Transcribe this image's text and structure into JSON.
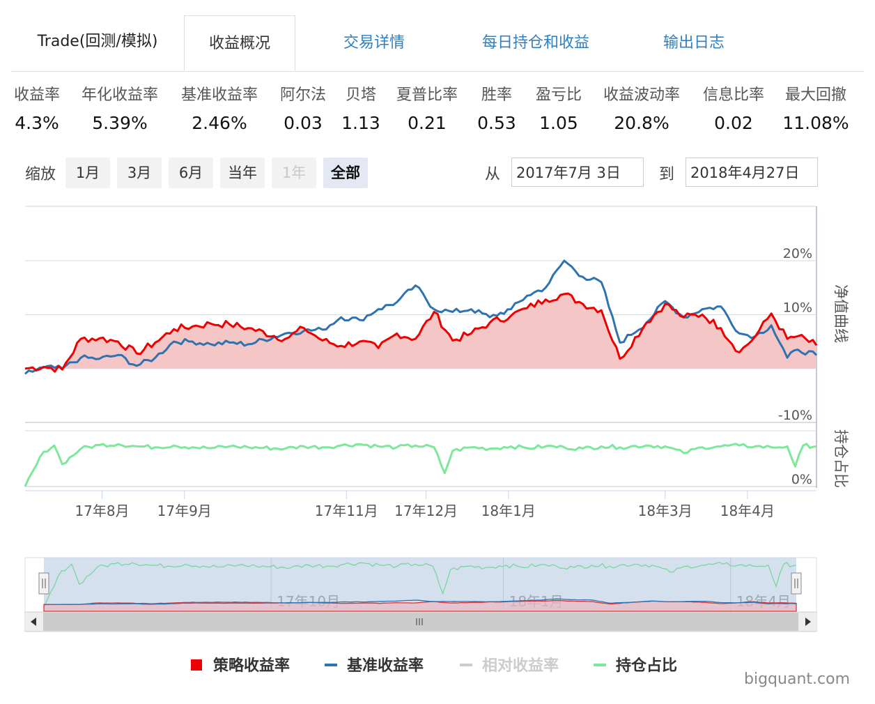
{
  "tabs": [
    "Trade(回测/模拟)",
    "收益概况",
    "交易详情",
    "每日持仓和收益",
    "输出日志"
  ],
  "metrics": [
    {
      "label": "收益率",
      "value": "4.3%"
    },
    {
      "label": "年化收益率",
      "value": "5.39%"
    },
    {
      "label": "基准收益率",
      "value": "2.46%"
    },
    {
      "label": "阿尔法",
      "value": "0.03"
    },
    {
      "label": "贝塔",
      "value": "1.13"
    },
    {
      "label": "夏普比率",
      "value": "0.21"
    },
    {
      "label": "胜率",
      "value": "0.53"
    },
    {
      "label": "盈亏比",
      "value": "1.05"
    },
    {
      "label": "收益波动率",
      "value": "20.8%"
    },
    {
      "label": "信息比率",
      "value": "0.02"
    },
    {
      "label": "最大回撤",
      "value": "11.08%"
    }
  ],
  "zoom": {
    "label": "缩放",
    "buttons": [
      "1月",
      "3月",
      "6月",
      "当年",
      "1年",
      "全部"
    ],
    "disabled": "1年",
    "selected": "全部"
  },
  "range": {
    "from_label": "从",
    "from": "2017年7月 3日",
    "to_label": "到",
    "to": "2018年4月27日"
  },
  "watermark": "bigquant.com",
  "colors": {
    "strategy": "#ee0000",
    "benchmark": "#2f72b0",
    "relative": "#cccccc",
    "position": "#7de89a",
    "area": "#f5c6c6",
    "tab_link": "#2f7fc1"
  },
  "chart_data": {
    "type": "line",
    "x_start": "2017-07-03",
    "x_end": "2018-04-27",
    "x_ticks": [
      "17年8月",
      "17年9月",
      "17年11月",
      "17年12月",
      "18年1月",
      "18年3月",
      "18年4月"
    ],
    "navigator_ticks": [
      "17年10月",
      "18年1月",
      "18年4月"
    ],
    "y_axis_title": "净值曲线",
    "y_ticks": [
      "20%",
      "10%",
      "0%",
      "-10%"
    ],
    "ylim": [
      -10,
      20
    ],
    "position_axis_title": "持仓占比",
    "position_ticks": [
      "0%"
    ],
    "series": [
      {
        "name": "策略收益率",
        "color": "#ee0000",
        "points": [
          [
            "2017-07-03",
            0
          ],
          [
            "2017-07-10",
            0.3
          ],
          [
            "2017-07-17",
            -0.2
          ],
          [
            "2017-07-24",
            5.5
          ],
          [
            "2017-07-31",
            5.6
          ],
          [
            "2017-08-07",
            5.0
          ],
          [
            "2017-08-14",
            2.8
          ],
          [
            "2017-08-21",
            4.8
          ],
          [
            "2017-08-28",
            7.3
          ],
          [
            "2017-09-04",
            7.8
          ],
          [
            "2017-09-11",
            8.3
          ],
          [
            "2017-09-18",
            8.2
          ],
          [
            "2017-09-25",
            7.5
          ],
          [
            "2017-10-09",
            5.5
          ],
          [
            "2017-10-16",
            7.5
          ],
          [
            "2017-10-23",
            5.2
          ],
          [
            "2017-10-30",
            4.2
          ],
          [
            "2017-11-06",
            5.0
          ],
          [
            "2017-11-13",
            3.8
          ],
          [
            "2017-11-20",
            6.5
          ],
          [
            "2017-11-27",
            5.5
          ],
          [
            "2017-12-04",
            10.5
          ],
          [
            "2017-12-11",
            5.2
          ],
          [
            "2017-12-18",
            6.5
          ],
          [
            "2017-12-25",
            8.5
          ],
          [
            "2018-01-02",
            9.8
          ],
          [
            "2018-01-08",
            11.2
          ],
          [
            "2018-01-15",
            12.8
          ],
          [
            "2018-01-22",
            13.8
          ],
          [
            "2018-01-29",
            12.0
          ],
          [
            "2018-02-05",
            10.8
          ],
          [
            "2018-02-12",
            1.8
          ],
          [
            "2018-02-22",
            8.5
          ],
          [
            "2018-03-01",
            12.0
          ],
          [
            "2018-03-08",
            9.5
          ],
          [
            "2018-03-15",
            10.0
          ],
          [
            "2018-03-22",
            7.5
          ],
          [
            "2018-03-29",
            3.0
          ],
          [
            "2018-04-04",
            6.0
          ],
          [
            "2018-04-10",
            10.2
          ],
          [
            "2018-04-16",
            5.5
          ],
          [
            "2018-04-20",
            6.0
          ],
          [
            "2018-04-27",
            4.3
          ]
        ]
      },
      {
        "name": "基准收益率",
        "color": "#2f72b0",
        "points": [
          [
            "2017-07-03",
            -1.0
          ],
          [
            "2017-07-10",
            0.2
          ],
          [
            "2017-07-17",
            0.0
          ],
          [
            "2017-07-24",
            2.0
          ],
          [
            "2017-07-31",
            1.8
          ],
          [
            "2017-08-07",
            2.5
          ],
          [
            "2017-08-14",
            0.5
          ],
          [
            "2017-08-21",
            2.0
          ],
          [
            "2017-08-28",
            5.0
          ],
          [
            "2017-09-04",
            5.0
          ],
          [
            "2017-09-11",
            4.5
          ],
          [
            "2017-09-18",
            4.8
          ],
          [
            "2017-09-25",
            4.5
          ],
          [
            "2017-10-09",
            6.5
          ],
          [
            "2017-10-16",
            7.0
          ],
          [
            "2017-10-23",
            7.2
          ],
          [
            "2017-10-30",
            9.5
          ],
          [
            "2017-11-06",
            9.0
          ],
          [
            "2017-11-13",
            11.0
          ],
          [
            "2017-11-20",
            12.3
          ],
          [
            "2017-11-27",
            15.4
          ],
          [
            "2017-12-04",
            11.0
          ],
          [
            "2017-12-11",
            10.5
          ],
          [
            "2017-12-18",
            11.0
          ],
          [
            "2017-12-25",
            9.5
          ],
          [
            "2018-01-02",
            11.0
          ],
          [
            "2018-01-08",
            13.5
          ],
          [
            "2018-01-15",
            15.0
          ],
          [
            "2018-01-22",
            20.0
          ],
          [
            "2018-01-29",
            17.0
          ],
          [
            "2018-02-05",
            16.0
          ],
          [
            "2018-02-12",
            4.8
          ],
          [
            "2018-02-22",
            8.5
          ],
          [
            "2018-03-01",
            12.5
          ],
          [
            "2018-03-08",
            9.5
          ],
          [
            "2018-03-15",
            11.0
          ],
          [
            "2018-03-22",
            11.5
          ],
          [
            "2018-03-29",
            6.5
          ],
          [
            "2018-04-04",
            6.0
          ],
          [
            "2018-04-10",
            8.0
          ],
          [
            "2018-04-16",
            2.0
          ],
          [
            "2018-04-20",
            3.5
          ],
          [
            "2018-04-27",
            2.46
          ]
        ]
      },
      {
        "name": "相对收益率",
        "color": "#cccccc",
        "visible": false,
        "points": []
      },
      {
        "name": "持仓占比",
        "color": "#7de89a",
        "points": [
          [
            "2017-07-03",
            0
          ],
          [
            "2017-07-10",
            78
          ],
          [
            "2017-07-14",
            92
          ],
          [
            "2017-07-17",
            50
          ],
          [
            "2017-07-24",
            85
          ],
          [
            "2017-07-31",
            93
          ],
          [
            "2017-08-07",
            95
          ],
          [
            "2017-08-14",
            90
          ],
          [
            "2017-08-21",
            88
          ],
          [
            "2017-08-28",
            92
          ],
          [
            "2017-09-04",
            88
          ],
          [
            "2017-09-11",
            86
          ],
          [
            "2017-09-18",
            90
          ],
          [
            "2017-09-25",
            88
          ],
          [
            "2017-10-09",
            85
          ],
          [
            "2017-10-16",
            90
          ],
          [
            "2017-10-23",
            88
          ],
          [
            "2017-10-30",
            92
          ],
          [
            "2017-11-06",
            95
          ],
          [
            "2017-11-13",
            90
          ],
          [
            "2017-11-20",
            88
          ],
          [
            "2017-11-27",
            92
          ],
          [
            "2017-12-04",
            88
          ],
          [
            "2017-12-08",
            30
          ],
          [
            "2017-12-11",
            80
          ],
          [
            "2017-12-18",
            88
          ],
          [
            "2017-12-25",
            85
          ],
          [
            "2018-01-02",
            90
          ],
          [
            "2018-01-08",
            86
          ],
          [
            "2018-01-15",
            90
          ],
          [
            "2018-01-22",
            88
          ],
          [
            "2018-01-29",
            85
          ],
          [
            "2018-02-05",
            90
          ],
          [
            "2018-02-12",
            88
          ],
          [
            "2018-02-22",
            92
          ],
          [
            "2018-03-01",
            90
          ],
          [
            "2018-03-08",
            75
          ],
          [
            "2018-03-15",
            88
          ],
          [
            "2018-03-22",
            90
          ],
          [
            "2018-03-29",
            92
          ],
          [
            "2018-04-04",
            90
          ],
          [
            "2018-04-10",
            88
          ],
          [
            "2018-04-16",
            90
          ],
          [
            "2018-04-19",
            45
          ],
          [
            "2018-04-22",
            92
          ],
          [
            "2018-04-27",
            90
          ]
        ]
      }
    ],
    "legend": [
      "策略收益率",
      "基准收益率",
      "相对收益率",
      "持仓占比"
    ],
    "legend_position": "bottom-center"
  }
}
